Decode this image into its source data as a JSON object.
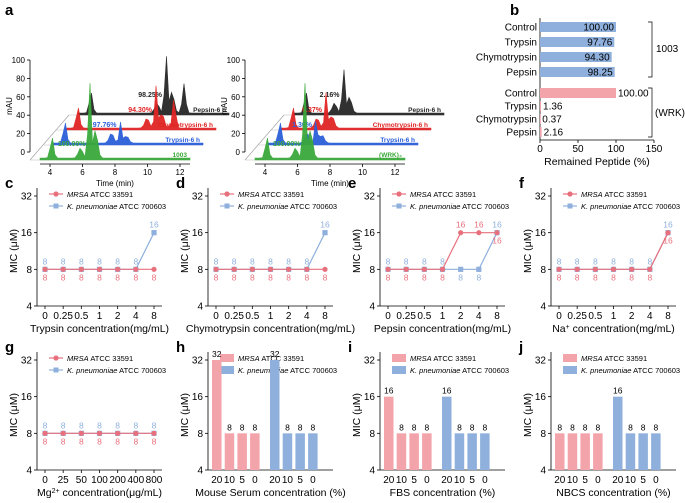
{
  "colors": {
    "red": "#e8707d",
    "blue": "#8fb0dc",
    "red_bar": "#f3a3aa",
    "blue_bar": "#8fb0dc",
    "pepsin_trace": "#262626",
    "chymo_trace": "#e02424",
    "trypsin_trace": "#2b5fd9",
    "ctrl_trace": "#3aa83a"
  },
  "panel_a": {
    "label": "a",
    "y_title": "mAU",
    "x_title": "Time (min)",
    "y_ticks": [
      "0",
      "20",
      "40",
      "60",
      "80",
      "100"
    ],
    "x_ticks": [
      "4",
      "6",
      "8",
      "10",
      "12"
    ],
    "left": {
      "traces": [
        {
          "name": "Pepsin-6 h",
          "pct": "98.25%"
        },
        {
          "name": "Chymotrypsin-6 h",
          "pct": "94.30%"
        },
        {
          "name": "Trypsin-6 h",
          "pct": "97.76%"
        },
        {
          "name": "1003",
          "pct": "100.00%"
        }
      ]
    },
    "right": {
      "traces": [
        {
          "name": "Pepsin-6 h",
          "pct": "2.16%"
        },
        {
          "name": "Chymotrypsin-6 h",
          "pct": "0.37%"
        },
        {
          "name": "Trypsin-6 h",
          "pct": "1.36%"
        },
        {
          "name": "(WRK)₄",
          "pct": "100.00%"
        }
      ]
    }
  },
  "panel_b": {
    "label": "b",
    "x_title": "Remained Peptide (%)",
    "x_ticks": [
      "0",
      "50",
      "100",
      "150"
    ],
    "group1_label": "1003",
    "group2_label": "(WRK)₄",
    "group1": [
      {
        "label": "Control",
        "value_text": "100.00"
      },
      {
        "label": "Trypsin",
        "value_text": "97.76"
      },
      {
        "label": "Chymotrypsin",
        "value_text": "94.30"
      },
      {
        "label": "Pepsin",
        "value_text": "98.25"
      }
    ],
    "group2": [
      {
        "label": "Control",
        "value_text": "100.00"
      },
      {
        "label": "Trypsin",
        "value_text": "1.36"
      },
      {
        "label": "Chymotrypsin",
        "value_text": "0.37"
      },
      {
        "label": "Pepsin",
        "value_text": "2.16"
      }
    ]
  },
  "legend": {
    "mrsa_italic": "MRSA",
    "mrsa_rest": " ATCC 33591",
    "kp_italic": "K. pneumoniae",
    "kp_rest": " ATCC 700603"
  },
  "mic_y_title": "MIC (μM)",
  "mic_y_ticks": [
    "4",
    "8",
    "16",
    "32"
  ],
  "line_panels": [
    {
      "label": "c",
      "xlabel": "Trypsin concentration(mg/mL)",
      "categories": [
        "0",
        "0.25",
        "0.5",
        "1",
        "2",
        "4",
        "8"
      ]
    },
    {
      "label": "d",
      "xlabel": "Chymotrypsin concentration(mg/mL)",
      "categories": [
        "0",
        "0.25",
        "0.5",
        "1",
        "2",
        "4",
        "8"
      ]
    },
    {
      "label": "e",
      "xlabel": "Pepsin concentration(mg/mL)",
      "categories": [
        "0",
        "0.25",
        "0.5",
        "1",
        "2",
        "4",
        "8"
      ]
    },
    {
      "label": "f",
      "xlabel_pre": "Na",
      "xlabel_sup": "+",
      "xlabel_post": " concentration(mg/mL)",
      "categories": [
        "0",
        "0.25",
        "0.5",
        "1",
        "2",
        "4",
        "8"
      ]
    },
    {
      "label": "g",
      "xlabel_pre": "Mg",
      "xlabel_sup": "2+",
      "xlabel_post": " concentration(μg/mL)",
      "categories": [
        "0",
        "25",
        "50",
        "100",
        "200",
        "400",
        "800"
      ]
    }
  ],
  "bar_panels": [
    {
      "label": "h",
      "xlabel": "Mouse Serum concentration (%)",
      "categories": [
        "20",
        "10",
        "5",
        "0"
      ]
    },
    {
      "label": "i",
      "xlabel": "FBS concentration (%)",
      "categories": [
        "20",
        "10",
        "5",
        "0"
      ]
    },
    {
      "label": "j",
      "xlabel": "NBCS concentration (%)",
      "categories": [
        "20",
        "10",
        "5",
        "0"
      ]
    }
  ],
  "chart_data": [
    {
      "panel": "b",
      "type": "bar",
      "orientation": "horizontal",
      "xlabel": "Remained Peptide (%)",
      "xlim": [
        0,
        150
      ],
      "groups": [
        {
          "name": "1003",
          "categories": [
            "Control",
            "Trypsin",
            "Chymotrypsin",
            "Pepsin"
          ],
          "values": [
            100.0,
            97.76,
            94.3,
            98.25
          ]
        },
        {
          "name": "(WRK)₄",
          "categories": [
            "Control",
            "Trypsin",
            "Chymotrypsin",
            "Pepsin"
          ],
          "values": [
            100.0,
            1.36,
            0.37,
            2.16
          ]
        }
      ]
    },
    {
      "panel": "c",
      "type": "line",
      "scale": "log2",
      "xlabel": "Trypsin concentration(mg/mL)",
      "ylabel": "MIC (μM)",
      "categories": [
        "0",
        "0.25",
        "0.5",
        "1",
        "2",
        "4",
        "8"
      ],
      "ylim": [
        4,
        32
      ],
      "series": [
        {
          "name": "MRSA ATCC 33591",
          "values": [
            8,
            8,
            8,
            8,
            8,
            8,
            8
          ]
        },
        {
          "name": "K. pneumoniae ATCC 700603",
          "values": [
            8,
            8,
            8,
            8,
            8,
            8,
            16
          ]
        }
      ]
    },
    {
      "panel": "d",
      "type": "line",
      "scale": "log2",
      "xlabel": "Chymotrypsin concentration(mg/mL)",
      "ylabel": "MIC (μM)",
      "categories": [
        "0",
        "0.25",
        "0.5",
        "1",
        "2",
        "4",
        "8"
      ],
      "ylim": [
        4,
        32
      ],
      "series": [
        {
          "name": "MRSA ATCC 33591",
          "values": [
            8,
            8,
            8,
            8,
            8,
            8,
            8
          ]
        },
        {
          "name": "K. pneumoniae ATCC 700603",
          "values": [
            8,
            8,
            8,
            8,
            8,
            8,
            16
          ]
        }
      ]
    },
    {
      "panel": "e",
      "type": "line",
      "scale": "log2",
      "xlabel": "Pepsin concentration(mg/mL)",
      "ylabel": "MIC (μM)",
      "categories": [
        "0",
        "0.25",
        "0.5",
        "1",
        "2",
        "4",
        "8"
      ],
      "ylim": [
        4,
        32
      ],
      "series": [
        {
          "name": "MRSA ATCC 33591",
          "values": [
            8,
            8,
            8,
            8,
            16,
            16,
            16
          ]
        },
        {
          "name": "K. pneumoniae ATCC 700603",
          "values": [
            8,
            8,
            8,
            8,
            8,
            8,
            16
          ]
        }
      ]
    },
    {
      "panel": "f",
      "type": "line",
      "scale": "log2",
      "xlabel": "Na+ concentration(mg/mL)",
      "ylabel": "MIC (μM)",
      "categories": [
        "0",
        "0.25",
        "0.5",
        "1",
        "2",
        "4",
        "8"
      ],
      "ylim": [
        4,
        32
      ],
      "series": [
        {
          "name": "MRSA ATCC 33591",
          "values": [
            8,
            8,
            8,
            8,
            8,
            8,
            16
          ]
        },
        {
          "name": "K. pneumoniae ATCC 700603",
          "values": [
            8,
            8,
            8,
            8,
            8,
            8,
            16
          ]
        }
      ]
    },
    {
      "panel": "g",
      "type": "line",
      "scale": "log2",
      "xlabel": "Mg2+ concentration(μg/mL)",
      "ylabel": "MIC (μM)",
      "categories": [
        "0",
        "25",
        "50",
        "100",
        "200",
        "400",
        "800"
      ],
      "ylim": [
        4,
        32
      ],
      "series": [
        {
          "name": "MRSA ATCC 33591",
          "values": [
            8,
            8,
            8,
            8,
            8,
            8,
            8
          ]
        },
        {
          "name": "K. pneumoniae ATCC 700603",
          "values": [
            8,
            8,
            8,
            8,
            8,
            8,
            8
          ]
        }
      ]
    },
    {
      "panel": "h",
      "type": "bar",
      "scale": "log2",
      "xlabel": "Mouse Serum concentration (%)",
      "ylabel": "MIC (μM)",
      "categories": [
        "20",
        "10",
        "5",
        "0"
      ],
      "ylim": [
        4,
        32
      ],
      "series": [
        {
          "name": "MRSA ATCC 33591",
          "values": [
            32,
            8,
            8,
            8
          ]
        },
        {
          "name": "K. pneumoniae ATCC 700603",
          "values": [
            32,
            8,
            8,
            8
          ]
        }
      ]
    },
    {
      "panel": "i",
      "type": "bar",
      "scale": "log2",
      "xlabel": "FBS concentration (%)",
      "ylabel": "MIC (μM)",
      "categories": [
        "20",
        "10",
        "5",
        "0"
      ],
      "ylim": [
        4,
        32
      ],
      "series": [
        {
          "name": "MRSA ATCC 33591",
          "values": [
            16,
            8,
            8,
            8
          ]
        },
        {
          "name": "K. pneumoniae ATCC 700603",
          "values": [
            16,
            8,
            8,
            8
          ]
        }
      ]
    },
    {
      "panel": "j",
      "type": "bar",
      "scale": "log2",
      "xlabel": "NBCS concentration (%)",
      "ylabel": "MIC (μM)",
      "categories": [
        "20",
        "10",
        "5",
        "0"
      ],
      "ylim": [
        4,
        32
      ],
      "series": [
        {
          "name": "MRSA ATCC 33591",
          "values": [
            8,
            8,
            8,
            8
          ]
        },
        {
          "name": "K. pneumoniae ATCC 700603",
          "values": [
            16,
            8,
            8,
            8
          ]
        }
      ]
    }
  ]
}
